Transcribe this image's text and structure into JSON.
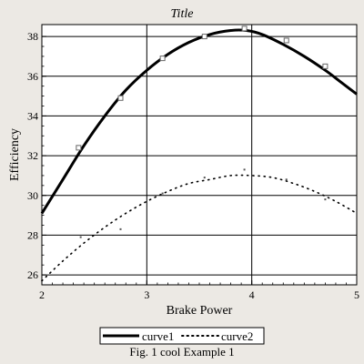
{
  "chart_data": {
    "type": "line",
    "title": "Title",
    "xlabel": "Brake Power",
    "ylabel": "Efficiency",
    "xlim": [
      2,
      5
    ],
    "ylim": [
      25.5,
      38.6
    ],
    "xticks": [
      2,
      3,
      4,
      5
    ],
    "yticks": [
      26,
      28,
      30,
      32,
      34,
      36,
      38
    ],
    "xtick_labels": [
      "2",
      "3",
      "4",
      "5"
    ],
    "ytick_labels": [
      "26",
      "28",
      "30",
      "32",
      "34",
      "36",
      "38"
    ],
    "grid": true,
    "legend_position": "bottom",
    "caption": "Fig. 1 cool  Example 1",
    "series": [
      {
        "name": "curve1",
        "style": "solid",
        "color": "#000000",
        "curve": {
          "x": [
            2.0,
            2.2,
            2.4,
            2.6,
            2.8,
            3.0,
            3.2,
            3.4,
            3.6,
            3.8,
            3.95,
            4.1,
            4.3,
            4.5,
            4.7,
            4.85,
            5.0
          ],
          "y": [
            29.1,
            30.8,
            32.5,
            34.0,
            35.3,
            36.3,
            37.1,
            37.7,
            38.1,
            38.3,
            38.3,
            38.1,
            37.6,
            37.0,
            36.3,
            35.7,
            35.1
          ]
        },
        "markers": {
          "x": [
            2.35,
            2.75,
            3.15,
            3.55,
            3.93,
            4.33,
            4.7
          ],
          "y": [
            32.4,
            34.9,
            36.9,
            38.0,
            38.4,
            37.8,
            36.5
          ]
        }
      },
      {
        "name": "curve2",
        "style": "dotted",
        "color": "#000000",
        "curve": {
          "x": [
            2.0,
            2.2,
            2.4,
            2.6,
            2.8,
            3.0,
            3.2,
            3.4,
            3.6,
            3.8,
            4.0,
            4.2,
            4.4,
            4.6,
            4.8,
            5.0
          ],
          "y": [
            25.7,
            26.7,
            27.6,
            28.4,
            29.1,
            29.7,
            30.2,
            30.6,
            30.8,
            31.0,
            31.0,
            30.9,
            30.6,
            30.2,
            29.7,
            29.1
          ]
        },
        "markers": {
          "x": [
            2.37,
            2.75,
            3.15,
            3.55,
            3.93,
            4.33,
            4.7
          ],
          "y": [
            27.9,
            28.3,
            30.1,
            30.9,
            31.3,
            30.8,
            29.8
          ]
        }
      }
    ]
  }
}
